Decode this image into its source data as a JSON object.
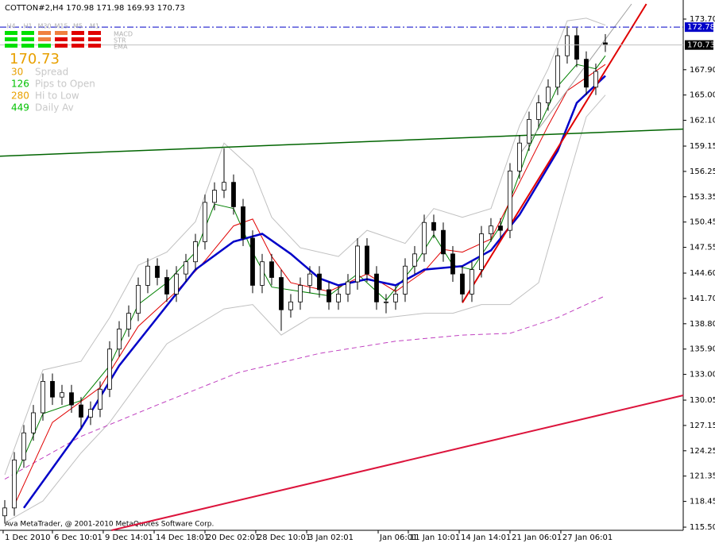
{
  "chart_data": {
    "type": "candlestick",
    "title": "COTTON#2,H4  170.98 171.98 169.93 170.73",
    "footer": "Ava MetaTrader, @ 2001-2010 MetaQuotes Software Corp.",
    "ylim": [
      115.14,
      175.43
    ],
    "xlim": [
      -0.5,
      71.17
    ],
    "yticks": [
      {
        "value": 173.7,
        "label": "173.70"
      },
      {
        "value": 167.9,
        "label": "167.90"
      },
      {
        "value": 165,
        "label": "165.00"
      },
      {
        "value": 162.1,
        "label": "162.10"
      },
      159.15,
      156.25,
      153.35,
      150.45,
      147.55,
      {
        "value": 144.6,
        "label": "144.60"
      },
      {
        "value": 141.7,
        "label": "141.70"
      },
      {
        "value": 138.8,
        "label": "138.80"
      },
      {
        "value": 135.9,
        "label": "135.90"
      },
      {
        "value": 133,
        "label": "133.00"
      },
      130.05,
      127.15,
      124.25,
      121.35,
      118.45,
      {
        "value": 115.5,
        "label": "115.50"
      }
    ],
    "xticks": [
      {
        "value": -0.17,
        "label": "1 Dec 2010"
      },
      {
        "value": 5,
        "label": "6 Dec 10:01"
      },
      {
        "value": 10.33,
        "label": "9 Dec 14:01"
      },
      {
        "value": 15.67,
        "label": "14 Dec 18:01"
      },
      {
        "value": 21,
        "label": "20 Dec 02:01"
      },
      {
        "value": 26.33,
        "label": "28 Dec 10:01"
      },
      {
        "value": 31.67,
        "label": "3 Jan 02:01"
      },
      {
        "value": 39.17,
        "label": "Jan 06:01"
      },
      {
        "value": 42.33,
        "label": "11 Jan 10:01"
      },
      {
        "value": 47.67,
        "label": "14 Jan 14:01"
      },
      {
        "value": 53,
        "label": "21 Jan 06:01"
      },
      {
        "value": 58.33,
        "label": "27 Jan 06:01"
      }
    ],
    "open": [
      116.8,
      117.7,
      123.2,
      126.3,
      128.6,
      132.2,
      130.4,
      130.9,
      129.5,
      128.1,
      129.0,
      131.3,
      135.9,
      138.2,
      140.0,
      143.2,
      145.4,
      144.1,
      142.2,
      144.5,
      145.9,
      148.2,
      152.7,
      154.1,
      155.0,
      152.2,
      148.6,
      143.2,
      145.9,
      144.1,
      140.4,
      141.3,
      143.2,
      144.5,
      142.7,
      141.3,
      142.2,
      143.6,
      147.7,
      144.5,
      141.3,
      141.3,
      142.2,
      145.4,
      146.8,
      150.4,
      149.5,
      146.8,
      144.5,
      142.2,
      145.0,
      149.1,
      150.0,
      149.5,
      156.3,
      159.5,
      162.2,
      164.1,
      165.9,
      169.5,
      171.8,
      169.1,
      165.9,
      170.98
    ],
    "high": [
      118.6,
      124.1,
      127.2,
      129.5,
      133.1,
      133.1,
      131.8,
      131.8,
      130.4,
      129.9,
      132.2,
      136.8,
      139.1,
      140.9,
      144.1,
      146.3,
      146.3,
      145.0,
      145.4,
      146.8,
      149.1,
      153.6,
      155.0,
      158.9,
      155.9,
      153.1,
      149.5,
      146.8,
      146.8,
      145.0,
      142.2,
      144.1,
      145.4,
      145.4,
      143.6,
      143.1,
      144.5,
      148.6,
      148.6,
      145.4,
      142.2,
      143.1,
      146.3,
      147.7,
      151.3,
      151.3,
      150.4,
      147.7,
      145.4,
      145.9,
      150.0,
      150.9,
      150.9,
      157.2,
      160.4,
      163.1,
      165.0,
      166.8,
      170.4,
      172.9,
      172.7,
      170.0,
      168.6,
      171.98
    ],
    "low": [
      115.9,
      116.8,
      122.3,
      125.4,
      127.7,
      129.5,
      129.5,
      128.6,
      126.9,
      127.2,
      128.1,
      130.4,
      135.0,
      137.3,
      139.1,
      142.3,
      143.2,
      141.3,
      141.3,
      143.6,
      145.0,
      147.3,
      151.8,
      153.2,
      151.3,
      147.7,
      142.3,
      142.3,
      143.2,
      138.0,
      139.5,
      140.4,
      142.3,
      141.8,
      140.4,
      140.4,
      141.3,
      142.7,
      143.6,
      140.4,
      140.0,
      140.4,
      141.3,
      144.5,
      145.9,
      148.6,
      145.9,
      143.6,
      141.3,
      141.3,
      144.1,
      148.2,
      148.6,
      148.6,
      155.4,
      158.6,
      161.3,
      163.2,
      165.0,
      168.6,
      168.2,
      165.0,
      165.0,
      169.93
    ],
    "close": [
      117.7,
      123.2,
      126.3,
      128.6,
      132.2,
      130.4,
      130.9,
      129.5,
      128.1,
      129.0,
      131.3,
      135.9,
      138.2,
      140.0,
      143.2,
      145.4,
      144.1,
      142.2,
      144.5,
      145.9,
      148.2,
      152.7,
      154.1,
      155.0,
      152.2,
      148.6,
      143.2,
      145.9,
      144.1,
      140.4,
      141.3,
      143.2,
      144.5,
      142.7,
      141.3,
      142.2,
      143.6,
      147.7,
      144.5,
      141.3,
      141.3,
      142.2,
      145.4,
      146.8,
      150.4,
      149.5,
      146.8,
      144.5,
      142.2,
      145.0,
      149.1,
      150.0,
      149.5,
      156.3,
      159.5,
      162.2,
      164.1,
      165.9,
      169.5,
      171.8,
      169.1,
      165.9,
      167.7,
      170.73
    ],
    "up_color": "#ffffff",
    "down_color": "#000000",
    "wick_color": "#000000",
    "series": [
      {
        "color": "#c0c0c0",
        "width": 1,
        "style": "solid",
        "x": [
          0,
          4,
          8,
          11,
          14,
          17,
          20,
          23,
          26,
          28,
          31,
          35,
          38,
          42,
          45,
          48,
          51,
          54,
          57,
          59,
          61,
          63
        ],
        "values": [
          121.5,
          133.5,
          134.5,
          139.5,
          145.5,
          147.0,
          150.5,
          159.5,
          156.5,
          151.0,
          147.5,
          146.5,
          149.5,
          148.0,
          152.0,
          151.0,
          152.0,
          161.5,
          168.0,
          173.5,
          173.8,
          173.0
        ]
      },
      {
        "color": "#c0c0c0",
        "width": 1,
        "style": "solid",
        "x": [
          0,
          4,
          8,
          11,
          14,
          17,
          20,
          23,
          26,
          29,
          32,
          36,
          40,
          44,
          47,
          50,
          53,
          56,
          59,
          61,
          63
        ],
        "values": [
          116.0,
          118.5,
          124.0,
          127.5,
          132.0,
          136.5,
          138.5,
          140.5,
          141.0,
          137.5,
          139.5,
          139.5,
          139.5,
          140.0,
          140.0,
          141.0,
          141.0,
          143.5,
          155.0,
          162.5,
          165.0
        ]
      },
      {
        "color": "#c040c0",
        "width": 1,
        "style": "dash",
        "x": [
          0,
          8,
          16,
          24.5,
          33,
          41,
          48,
          53,
          58,
          63
        ],
        "values": [
          121.0,
          125.9,
          129.5,
          133.2,
          135.4,
          136.8,
          137.5,
          137.7,
          139.5,
          142.0
        ]
      },
      {
        "color": "#008000",
        "width": 1,
        "style": "solid",
        "x": [
          1,
          4,
          8,
          11,
          14,
          17,
          20,
          22,
          24,
          26,
          28,
          31,
          34,
          37,
          40,
          43,
          45,
          47,
          49,
          52,
          55,
          58,
          60,
          62,
          63
        ],
        "values": [
          121.0,
          128.5,
          130.0,
          134.0,
          141.0,
          143.5,
          147.0,
          152.5,
          152.0,
          147.0,
          143.0,
          142.5,
          142.0,
          144.5,
          141.5,
          145.5,
          149.0,
          145.5,
          145.0,
          150.0,
          159.0,
          166.0,
          168.5,
          168.0,
          169.5
        ]
      },
      {
        "color": "#e00000",
        "width": 1,
        "style": "solid",
        "x": [
          1,
          5,
          10,
          14,
          18,
          21,
          24,
          26,
          28,
          30,
          34,
          38,
          41,
          44,
          46,
          48,
          51,
          54,
          57,
          59,
          61,
          63
        ],
        "values": [
          118.0,
          127.5,
          131.5,
          138.5,
          142.5,
          146.0,
          150.0,
          150.8,
          146.5,
          143.5,
          142.5,
          144.5,
          142.5,
          144.8,
          147.3,
          147.0,
          148.5,
          155.0,
          161.5,
          165.5,
          167.0,
          168.5
        ]
      },
      {
        "color": "#0000c8",
        "width": 2.5,
        "style": "solid",
        "x": [
          2,
          8,
          12,
          16,
          20,
          24,
          27,
          30,
          33,
          35,
          38,
          41,
          44,
          48,
          51,
          54,
          58,
          60,
          63
        ],
        "values": [
          117.7,
          126.8,
          134.0,
          139.5,
          145.0,
          148.2,
          149.1,
          146.8,
          144.0,
          143.2,
          143.9,
          143.2,
          145.0,
          145.4,
          147.2,
          151.3,
          158.6,
          164.1,
          167.2
        ]
      },
      {
        "color": "#006400",
        "width": 1.5,
        "style": "solid",
        "x": [
          -0.5,
          71.17
        ],
        "values": [
          158.0,
          161.1
        ]
      },
      {
        "color": "#dc143c",
        "width": 2,
        "style": "solid",
        "x": [
          11.2,
          71.17
        ],
        "values": [
          115.14,
          130.6
        ]
      },
      {
        "color": "#e00000",
        "width": 2,
        "style": "solid",
        "x": [
          48,
          67.3
        ],
        "values": [
          141.2,
          175.43
        ]
      },
      {
        "color": "#a0a0a0",
        "width": 1,
        "style": "solid",
        "x": [
          54,
          65.75
        ],
        "values": [
          158.2,
          175.43
        ]
      }
    ],
    "alert_line": {
      "value": 172.78,
      "color": "#0000c8"
    },
    "bid_line": {
      "value": 170.73,
      "color": "#c0c0c0"
    }
  },
  "panel": {
    "timeframes": [
      "H4",
      "H1",
      "M30",
      "M15",
      "M5",
      "M1"
    ],
    "rows": [
      {
        "label": "MACD",
        "colors": [
          "#00e000",
          "#00e000",
          "#f08040",
          "#f08040",
          "#e00000",
          "#e00000"
        ]
      },
      {
        "label": "STR",
        "colors": [
          "#00e000",
          "#00e000",
          "#f08040",
          "#e00000",
          "#e00000",
          "#e00000"
        ]
      },
      {
        "label": "EMA",
        "colors": [
          "#00e000",
          "#00e000",
          "#00e000",
          "#e00000",
          "#e00000",
          "#e00000"
        ]
      }
    ],
    "price": 170.73,
    "price_color": "#e8a000",
    "stats": [
      {
        "value": 30,
        "label": "Spread",
        "color": "#e8a000"
      },
      {
        "value": 126,
        "label": "Pips to Open",
        "color": "#00c000"
      },
      {
        "value": 280,
        "label": "Hi to Low",
        "color": "#e8a000"
      },
      {
        "value": 449,
        "label": "Daily Av",
        "color": "#00c000"
      }
    ]
  }
}
